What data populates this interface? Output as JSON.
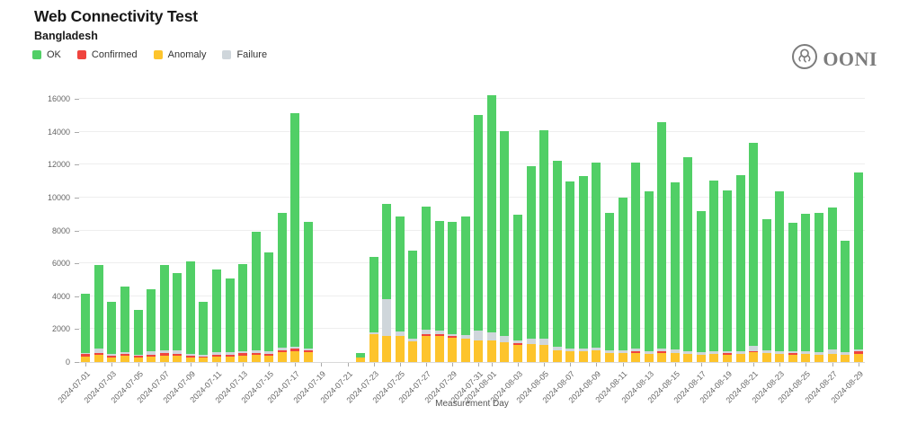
{
  "header": {
    "title": "Web Connectivity Test",
    "subtitle": "Bangladesh"
  },
  "logo": {
    "text": "OONI"
  },
  "legend": [
    {
      "label": "OK",
      "color": "#51CF66"
    },
    {
      "label": "Confirmed",
      "color": "#F0443E"
    },
    {
      "label": "Anomaly",
      "color": "#FDC42C"
    },
    {
      "label": "Failure",
      "color": "#CFD6DB"
    }
  ],
  "chart_data": {
    "type": "bar",
    "stacked": true,
    "title": "Web Connectivity Test",
    "subtitle": "Bangladesh",
    "xlabel": "Measurement Day",
    "ylabel": "",
    "ylim": [
      0,
      16000
    ],
    "ytick_step": 2000,
    "grid": true,
    "legend_position": "top-left",
    "note_missing_days": [
      "2024-07-19",
      "2024-07-20",
      "2024-07-21"
    ],
    "x": [
      "2024-07-01",
      "2024-07-02",
      "2024-07-03",
      "2024-07-04",
      "2024-07-05",
      "2024-07-06",
      "2024-07-07",
      "2024-07-08",
      "2024-07-09",
      "2024-07-10",
      "2024-07-11",
      "2024-07-12",
      "2024-07-13",
      "2024-07-14",
      "2024-07-15",
      "2024-07-16",
      "2024-07-17",
      "2024-07-18",
      "2024-07-19",
      "2024-07-20",
      "2024-07-21",
      "2024-07-22",
      "2024-07-23",
      "2024-07-24",
      "2024-07-25",
      "2024-07-26",
      "2024-07-27",
      "2024-07-28",
      "2024-07-29",
      "2024-07-30",
      "2024-07-31",
      "2024-08-01",
      "2024-08-02",
      "2024-08-03",
      "2024-08-04",
      "2024-08-05",
      "2024-08-06",
      "2024-08-07",
      "2024-08-08",
      "2024-08-09",
      "2024-08-10",
      "2024-08-11",
      "2024-08-12",
      "2024-08-13",
      "2024-08-14",
      "2024-08-15",
      "2024-08-16",
      "2024-08-17",
      "2024-08-18",
      "2024-08-19",
      "2024-08-20",
      "2024-08-21",
      "2024-08-22",
      "2024-08-23",
      "2024-08-24",
      "2024-08-25",
      "2024-08-26",
      "2024-08-27",
      "2024-08-28",
      "2024-08-29"
    ],
    "series": [
      {
        "name": "Anomaly",
        "color": "#FDC42C",
        "values": [
          350,
          420,
          300,
          380,
          280,
          350,
          400,
          380,
          300,
          280,
          350,
          350,
          400,
          420,
          400,
          600,
          650,
          600,
          0,
          0,
          0,
          250,
          1700,
          1600,
          1600,
          1250,
          1600,
          1600,
          1450,
          1400,
          1300,
          1300,
          1200,
          1050,
          1100,
          1050,
          700,
          650,
          650,
          700,
          550,
          550,
          550,
          500,
          550,
          550,
          500,
          450,
          500,
          450,
          500,
          600,
          550,
          500,
          450,
          500,
          450,
          500,
          450,
          500
        ]
      },
      {
        "name": "Confirmed",
        "color": "#F0443E",
        "values": [
          120,
          140,
          100,
          120,
          80,
          100,
          150,
          120,
          100,
          70,
          100,
          100,
          150,
          130,
          100,
          100,
          150,
          100,
          0,
          0,
          0,
          0,
          0,
          0,
          0,
          0,
          120,
          120,
          120,
          0,
          0,
          0,
          0,
          80,
          0,
          0,
          0,
          0,
          0,
          0,
          0,
          0,
          80,
          0,
          80,
          0,
          0,
          0,
          0,
          80,
          0,
          80,
          0,
          0,
          80,
          0,
          0,
          0,
          0,
          130
        ]
      },
      {
        "name": "Failure",
        "color": "#CFD6DB",
        "values": [
          80,
          240,
          100,
          100,
          90,
          200,
          150,
          200,
          100,
          100,
          150,
          150,
          100,
          150,
          150,
          150,
          150,
          100,
          0,
          0,
          0,
          0,
          100,
          2200,
          250,
          150,
          230,
          180,
          130,
          250,
          600,
          500,
          400,
          170,
          300,
          350,
          250,
          150,
          150,
          200,
          150,
          150,
          170,
          150,
          170,
          200,
          150,
          150,
          150,
          120,
          150,
          320,
          150,
          150,
          120,
          150,
          150,
          250,
          150,
          120
        ]
      },
      {
        "name": "OK",
        "color": "#51CF66",
        "values": [
          3600,
          5100,
          3150,
          4000,
          2700,
          3800,
          5200,
          4700,
          5600,
          3200,
          5000,
          4500,
          5300,
          7200,
          6000,
          8200,
          14200,
          7700,
          0,
          0,
          0,
          300,
          4600,
          5800,
          7000,
          5400,
          7500,
          6700,
          6800,
          7200,
          13100,
          14400,
          12450,
          7650,
          10500,
          12700,
          11300,
          10200,
          10500,
          11250,
          8350,
          9300,
          11350,
          9750,
          13800,
          10200,
          11800,
          8600,
          10400,
          9800,
          10700,
          12350,
          8000,
          9750,
          7800,
          8350,
          8450,
          8650,
          6800,
          10800
        ]
      }
    ]
  }
}
